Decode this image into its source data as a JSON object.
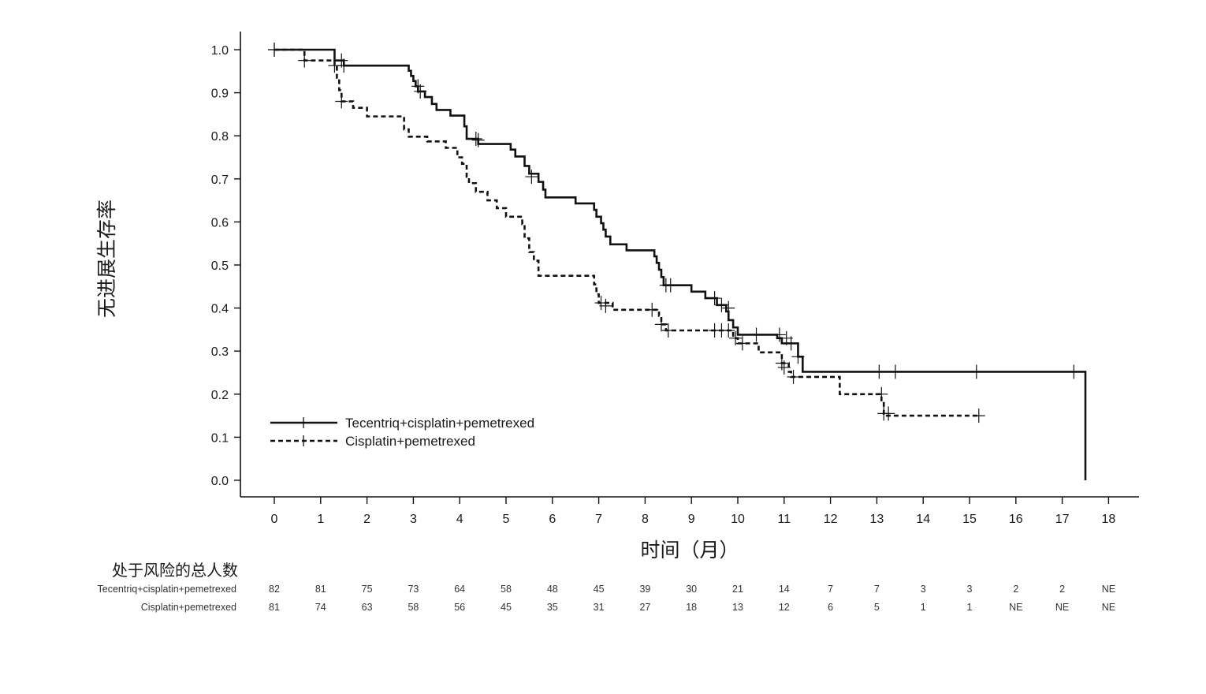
{
  "chart_data": {
    "type": "line",
    "subtype": "kaplan-meier",
    "title": "",
    "ylabel": "无进展生存率",
    "xlabel": "时间（月）",
    "xlim": [
      0,
      18
    ],
    "ylim": [
      0,
      1
    ],
    "xticks": [
      0,
      1,
      2,
      3,
      4,
      5,
      6,
      7,
      8,
      9,
      10,
      11,
      12,
      13,
      14,
      15,
      16,
      17,
      18
    ],
    "yticks": [
      "0.0",
      "0.1",
      "0.2",
      "0.3",
      "0.4",
      "0.5",
      "0.6",
      "0.7",
      "0.8",
      "0.9",
      "1.0"
    ],
    "grid": false,
    "legend_position": "bottom-left",
    "series": [
      {
        "name": "Tecentriq+cisplatin+pemetrexed",
        "line_style": "solid",
        "color": "#111111",
        "steps": [
          [
            0,
            1.0
          ],
          [
            1.3,
            0.975
          ],
          [
            1.5,
            0.963
          ],
          [
            2.9,
            0.951
          ],
          [
            2.95,
            0.939
          ],
          [
            3.0,
            0.927
          ],
          [
            3.05,
            0.915
          ],
          [
            3.1,
            0.903
          ],
          [
            3.25,
            0.89
          ],
          [
            3.4,
            0.874
          ],
          [
            3.5,
            0.86
          ],
          [
            3.8,
            0.847
          ],
          [
            4.1,
            0.822
          ],
          [
            4.15,
            0.793
          ],
          [
            4.4,
            0.781
          ],
          [
            5.1,
            0.768
          ],
          [
            5.2,
            0.752
          ],
          [
            5.4,
            0.73
          ],
          [
            5.5,
            0.712
          ],
          [
            5.7,
            0.693
          ],
          [
            5.8,
            0.675
          ],
          [
            5.85,
            0.657
          ],
          [
            6.5,
            0.643
          ],
          [
            6.9,
            0.628
          ],
          [
            6.95,
            0.612
          ],
          [
            7.05,
            0.597
          ],
          [
            7.1,
            0.582
          ],
          [
            7.15,
            0.566
          ],
          [
            7.25,
            0.548
          ],
          [
            7.6,
            0.534
          ],
          [
            8.2,
            0.52
          ],
          [
            8.25,
            0.505
          ],
          [
            8.3,
            0.489
          ],
          [
            8.35,
            0.472
          ],
          [
            8.4,
            0.453
          ],
          [
            9.0,
            0.438
          ],
          [
            9.3,
            0.423
          ],
          [
            9.55,
            0.407
          ],
          [
            9.75,
            0.392
          ],
          [
            9.8,
            0.372
          ],
          [
            9.9,
            0.355
          ],
          [
            10.0,
            0.338
          ],
          [
            10.85,
            0.33
          ],
          [
            10.95,
            0.318
          ],
          [
            11.3,
            0.287
          ],
          [
            11.4,
            0.252
          ],
          [
            17.5,
            0.0
          ]
        ],
        "censors": [
          [
            0,
            1.0
          ],
          [
            1.45,
            0.975
          ],
          [
            1.5,
            0.963
          ],
          [
            3.1,
            0.915
          ],
          [
            3.15,
            0.903
          ],
          [
            4.35,
            0.793
          ],
          [
            5.55,
            0.705
          ],
          [
            8.45,
            0.453
          ],
          [
            8.55,
            0.453
          ],
          [
            9.5,
            0.423
          ],
          [
            9.65,
            0.407
          ],
          [
            9.8,
            0.4
          ],
          [
            10.4,
            0.338
          ],
          [
            10.9,
            0.338
          ],
          [
            11.05,
            0.33
          ],
          [
            11.15,
            0.318
          ],
          [
            11.3,
            0.287
          ],
          [
            13.05,
            0.252
          ],
          [
            13.4,
            0.252
          ],
          [
            15.15,
            0.252
          ],
          [
            17.25,
            0.252
          ]
        ]
      },
      {
        "name": "Cisplatin+pemetrexed",
        "line_style": "dashed",
        "color": "#111111",
        "steps": [
          [
            0,
            1.0
          ],
          [
            0.65,
            0.975
          ],
          [
            1.3,
            0.963
          ],
          [
            1.35,
            0.935
          ],
          [
            1.4,
            0.906
          ],
          [
            1.45,
            0.88
          ],
          [
            1.7,
            0.865
          ],
          [
            2.0,
            0.845
          ],
          [
            2.8,
            0.815
          ],
          [
            2.9,
            0.798
          ],
          [
            3.3,
            0.787
          ],
          [
            3.7,
            0.772
          ],
          [
            3.95,
            0.75
          ],
          [
            4.05,
            0.735
          ],
          [
            4.15,
            0.705
          ],
          [
            4.2,
            0.69
          ],
          [
            4.35,
            0.67
          ],
          [
            4.6,
            0.65
          ],
          [
            4.8,
            0.632
          ],
          [
            5.0,
            0.612
          ],
          [
            5.35,
            0.595
          ],
          [
            5.4,
            0.562
          ],
          [
            5.5,
            0.53
          ],
          [
            5.6,
            0.51
          ],
          [
            5.7,
            0.475
          ],
          [
            6.9,
            0.455
          ],
          [
            6.95,
            0.432
          ],
          [
            7.0,
            0.412
          ],
          [
            7.3,
            0.396
          ],
          [
            8.3,
            0.382
          ],
          [
            8.35,
            0.362
          ],
          [
            8.45,
            0.348
          ],
          [
            9.9,
            0.33
          ],
          [
            10.0,
            0.318
          ],
          [
            10.45,
            0.297
          ],
          [
            10.95,
            0.272
          ],
          [
            11.1,
            0.252
          ],
          [
            11.15,
            0.24
          ],
          [
            12.2,
            0.2
          ],
          [
            13.1,
            0.182
          ],
          [
            13.15,
            0.15
          ],
          [
            15.2,
            0.15
          ]
        ],
        "censors": [
          [
            0,
            1.0
          ],
          [
            0.65,
            0.975
          ],
          [
            1.3,
            0.963
          ],
          [
            1.45,
            0.88
          ],
          [
            4.4,
            0.79
          ],
          [
            7.05,
            0.412
          ],
          [
            7.15,
            0.405
          ],
          [
            8.15,
            0.396
          ],
          [
            8.35,
            0.362
          ],
          [
            8.5,
            0.348
          ],
          [
            9.5,
            0.348
          ],
          [
            9.65,
            0.348
          ],
          [
            9.8,
            0.348
          ],
          [
            9.95,
            0.33
          ],
          [
            10.1,
            0.318
          ],
          [
            10.95,
            0.272
          ],
          [
            11.0,
            0.262
          ],
          [
            11.2,
            0.24
          ],
          [
            13.1,
            0.2
          ],
          [
            13.15,
            0.155
          ],
          [
            13.25,
            0.155
          ],
          [
            15.2,
            0.15
          ]
        ]
      }
    ]
  },
  "risk_table": {
    "title": "处于风险的总人数",
    "rows": [
      {
        "label": "Tecentriq+cisplatin+pemetrexed",
        "values": [
          "82",
          "81",
          "75",
          "73",
          "64",
          "58",
          "48",
          "45",
          "39",
          "30",
          "21",
          "14",
          "7",
          "7",
          "3",
          "3",
          "2",
          "2",
          "NE"
        ]
      },
      {
        "label": "Cisplatin+pemetrexed",
        "values": [
          "81",
          "74",
          "63",
          "58",
          "56",
          "45",
          "35",
          "31",
          "27",
          "18",
          "13",
          "12",
          "6",
          "5",
          "1",
          "1",
          "NE",
          "NE",
          "NE"
        ]
      }
    ]
  }
}
